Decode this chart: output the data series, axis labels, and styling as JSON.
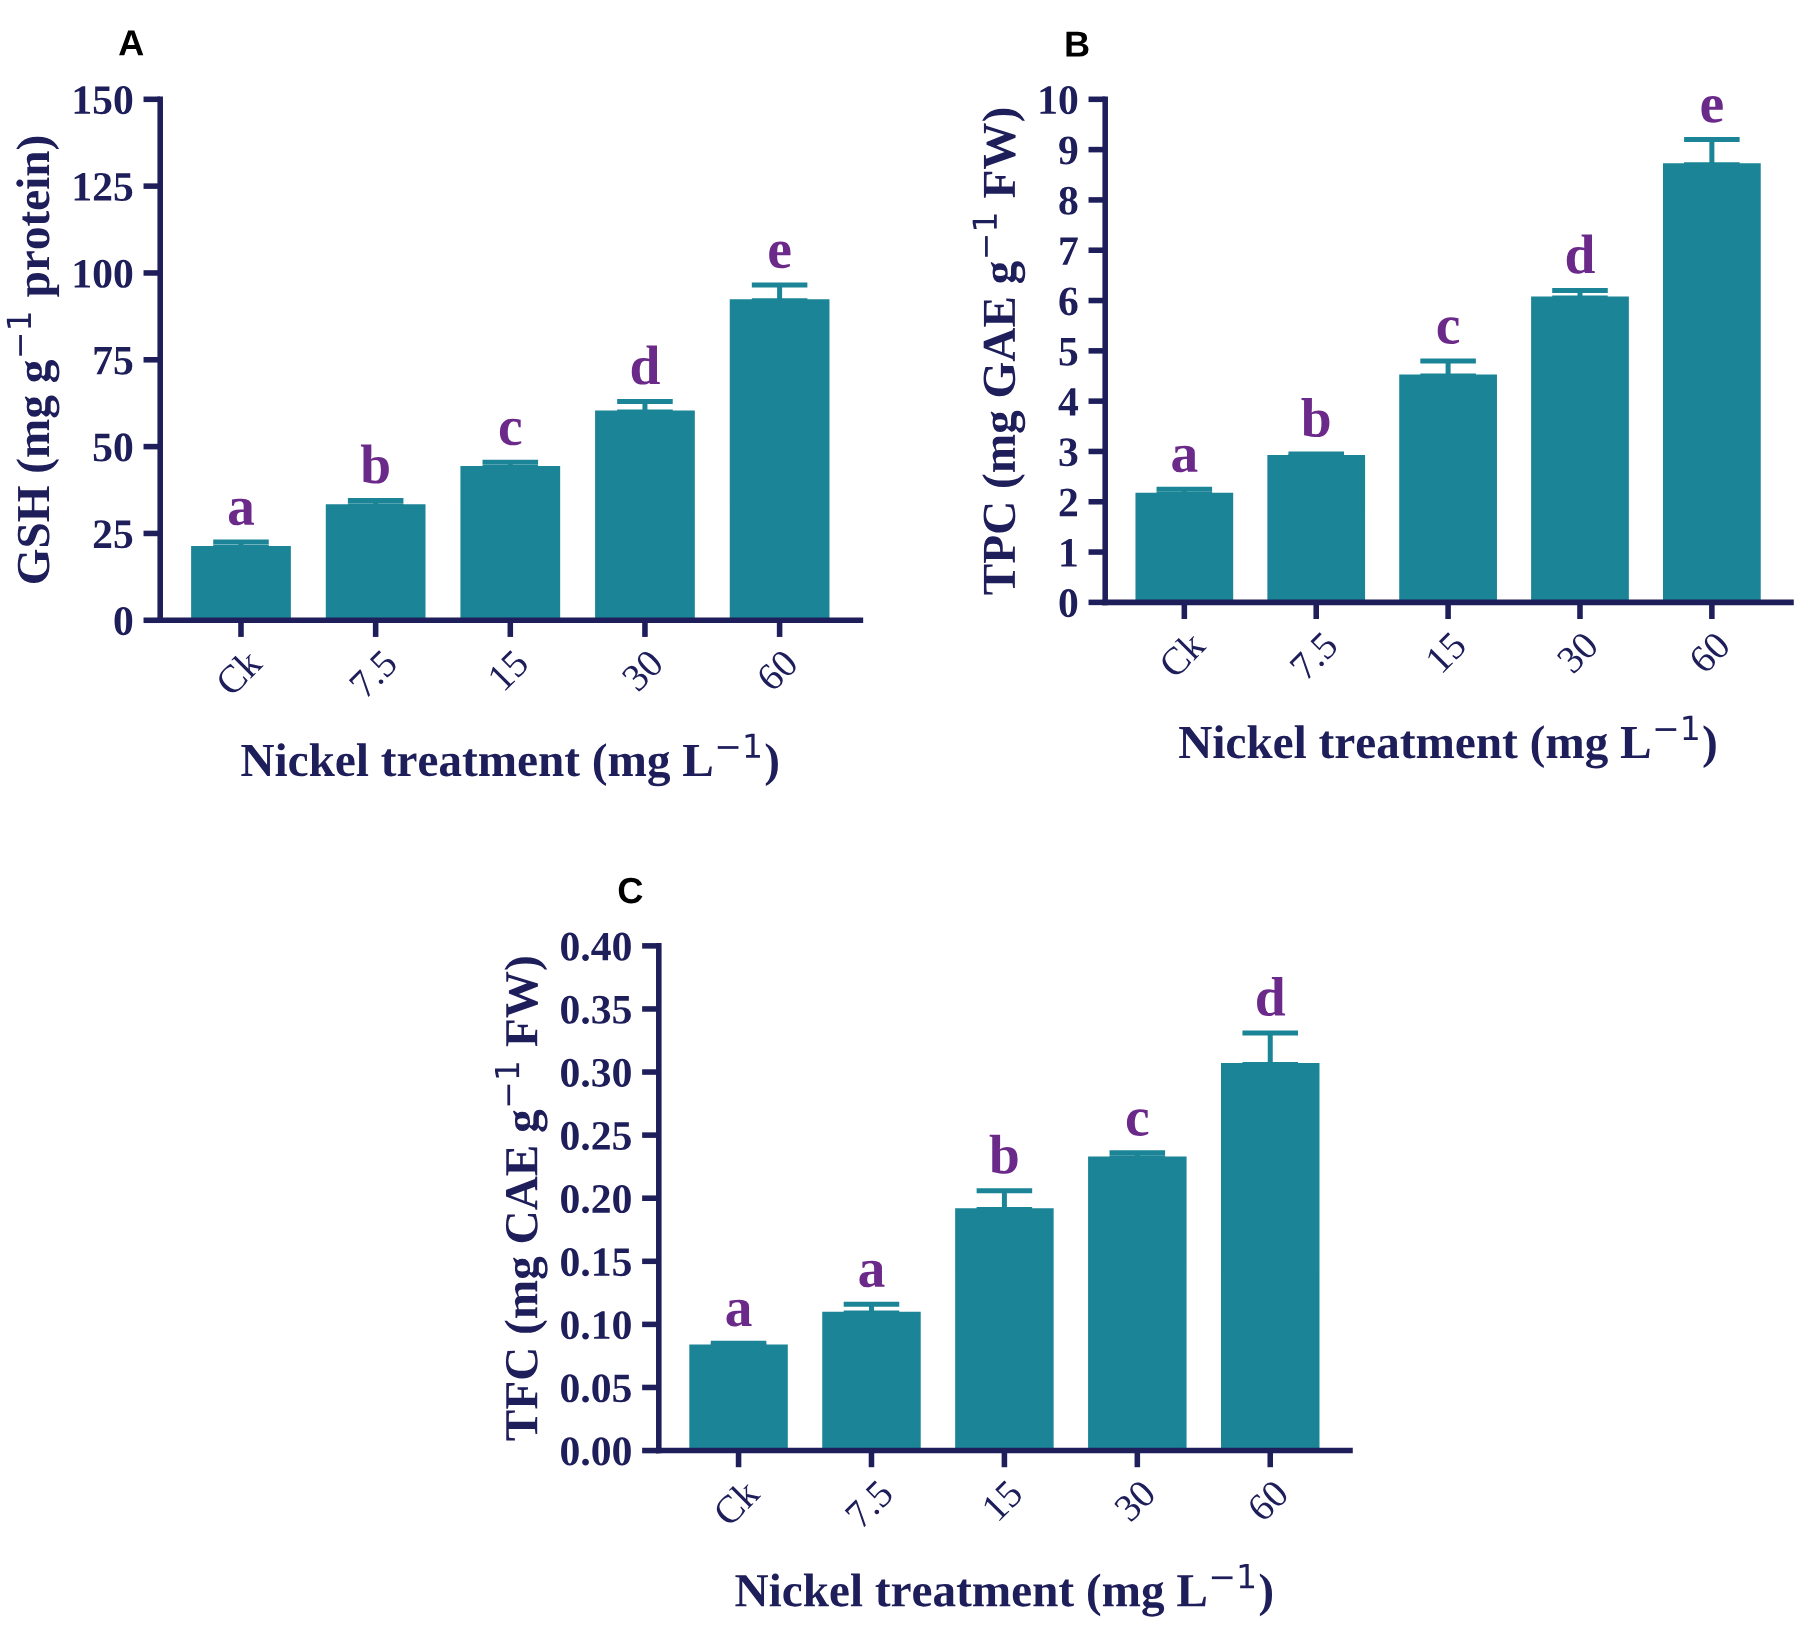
{
  "chart_data": [
    {
      "type": "bar",
      "title": "A",
      "categories": [
        "Ck",
        "7.5",
        "15",
        "30",
        "60"
      ],
      "values": [
        21,
        33,
        44,
        60,
        92
      ],
      "errors": [
        1.5,
        1.5,
        1.5,
        3,
        4.5
      ],
      "color": "#1b8496",
      "xlabel": "Nickel treatment (mg L$^{−1}$)",
      "ylabel": "GSH (mg g$^{−1}$ protein)",
      "ylim": [
        0,
        150
      ],
      "yticks": [
        0,
        25,
        50,
        75,
        100,
        125,
        150
      ],
      "grid": false,
      "legend": false,
      "annotations": [
        {
          "text": "a",
          "x": "Ck",
          "y": 22.5
        },
        {
          "text": "b",
          "x": "7.5",
          "y": 34.5
        },
        {
          "text": "c",
          "x": "15",
          "y": 45.5
        },
        {
          "text": "d",
          "x": "30",
          "y": 63
        },
        {
          "text": "e",
          "x": "60",
          "y": 96.5
        }
      ]
    },
    {
      "type": "bar",
      "title": "B",
      "categories": [
        "Ck",
        "7.5",
        "15",
        "30",
        "60"
      ],
      "values": [
        2.15,
        2.9,
        4.5,
        6.05,
        8.7
      ],
      "errors": [
        0.1,
        0.05,
        0.3,
        0.15,
        0.5
      ],
      "color": "#1b8496",
      "xlabel": "Nickel treatment (mg L$^{−1}$)",
      "ylabel": "TPC (mg GAE g$^{−1}$ FW)",
      "ylim": [
        0,
        10
      ],
      "yticks": [
        0,
        1,
        2,
        3,
        4,
        5,
        6,
        7,
        8,
        9,
        10
      ],
      "grid": false,
      "legend": false,
      "annotations": [
        {
          "text": "a",
          "x": "Ck",
          "y": 2.25
        },
        {
          "text": "b",
          "x": "7.5",
          "y": 2.95
        },
        {
          "text": "c",
          "x": "15",
          "y": 4.8
        },
        {
          "text": "d",
          "x": "30",
          "y": 6.2
        },
        {
          "text": "e",
          "x": "60",
          "y": 9.2
        }
      ]
    },
    {
      "type": "bar",
      "title": "C",
      "categories": [
        "Ck",
        "7.5",
        "15",
        "30",
        "60"
      ],
      "values": [
        0.083,
        0.109,
        0.191,
        0.232,
        0.306
      ],
      "errors": [
        0.002,
        0.007,
        0.015,
        0.004,
        0.025
      ],
      "color": "#1b8496",
      "xlabel": "Nickel treatment (mg L$^{−1}$)",
      "ylabel": "TFC (mg CAE g$^{−1}$ FW)",
      "ylim": [
        0,
        0.4
      ],
      "yticks": [
        {
          "value": 0,
          "label": "0.00"
        },
        {
          "value": 0.05,
          "label": "0.05"
        },
        {
          "value": 0.1,
          "label": "0.10"
        },
        {
          "value": 0.15,
          "label": "0.15"
        },
        {
          "value": 0.2,
          "label": "0.20"
        },
        {
          "value": 0.25,
          "label": "0.25"
        },
        {
          "value": 0.3,
          "label": "0.30"
        },
        {
          "value": 0.35,
          "label": "0.35"
        },
        {
          "value": 0.4,
          "label": "0.40"
        }
      ],
      "grid": false,
      "legend": false,
      "annotations": [
        {
          "text": "a",
          "x": "Ck",
          "y": 0.085
        },
        {
          "text": "a",
          "x": "7.5",
          "y": 0.116
        },
        {
          "text": "b",
          "x": "15",
          "y": 0.206
        },
        {
          "text": "c",
          "x": "30",
          "y": 0.236
        },
        {
          "text": "d",
          "x": "60",
          "y": 0.331
        }
      ]
    }
  ]
}
